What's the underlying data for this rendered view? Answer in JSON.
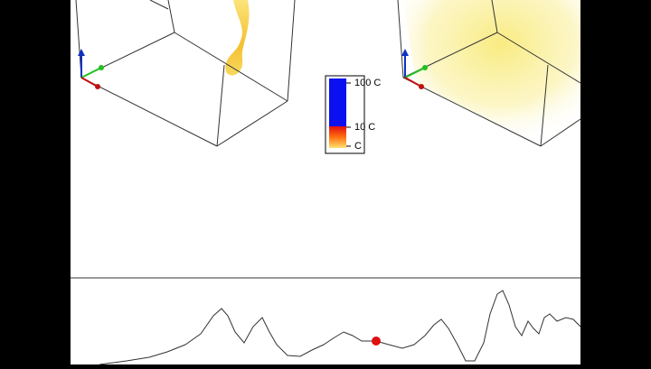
{
  "colorbar": {
    "labels": [
      "100 C",
      "10 C",
      "C"
    ]
  }
}
